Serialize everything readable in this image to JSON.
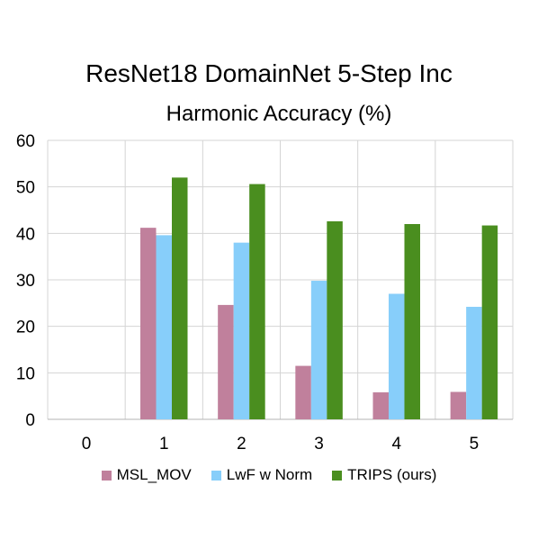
{
  "chart_data": {
    "type": "bar",
    "title": "ResNet18 DomainNet 5-Step Inc",
    "subtitle": "Harmonic Accuracy (%)",
    "xlabel": "",
    "ylabel": "",
    "categories": [
      "0",
      "1",
      "2",
      "3",
      "4",
      "5"
    ],
    "series": [
      {
        "name": "MSL_MOV",
        "color": "#c0809c",
        "values": [
          0,
          41.2,
          24.6,
          11.5,
          5.8,
          5.9
        ]
      },
      {
        "name": "LwF w Norm",
        "color": "#87cefa",
        "values": [
          0,
          39.6,
          38.0,
          29.8,
          27.0,
          24.2
        ]
      },
      {
        "name": "TRIPS (ours)",
        "color": "#4a8e1f",
        "values": [
          0,
          52.0,
          50.6,
          42.6,
          42.0,
          41.7
        ]
      }
    ],
    "ylim": [
      0,
      60
    ],
    "yticks": [
      0,
      10,
      20,
      30,
      40,
      50,
      60
    ],
    "grid": true,
    "legend_position": "bottom"
  }
}
